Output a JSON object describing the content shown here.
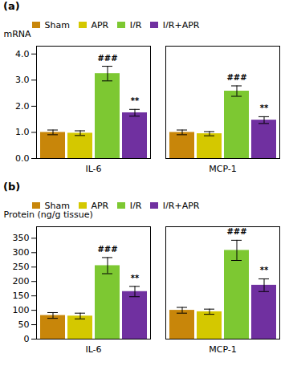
{
  "chart_data": [
    {
      "type": "bar",
      "title": "(a)",
      "categories": [
        "IL-6",
        "MCP-1"
      ],
      "series": [
        {
          "name": "Sham",
          "color": "#C8860A",
          "values": [
            1.0,
            1.0
          ],
          "errors": [
            0.09,
            0.09
          ]
        },
        {
          "name": "APR",
          "color": "#D4C800",
          "values": [
            0.97,
            0.95
          ],
          "errors": [
            0.09,
            0.08
          ]
        },
        {
          "name": "I/R",
          "color": "#7DC832",
          "values": [
            3.25,
            2.58
          ],
          "errors": [
            0.28,
            0.2
          ]
        },
        {
          "name": "I/R+APR",
          "color": "#7030A0",
          "values": [
            1.75,
            1.47
          ],
          "errors": [
            0.13,
            0.13
          ]
        }
      ],
      "annotations": [
        {
          "text": "###",
          "category": "IL-6",
          "series": "I/R"
        },
        {
          "text": "**",
          "category": "IL-6",
          "series": "I/R+APR"
        },
        {
          "text": "###",
          "category": "MCP-1",
          "series": "I/R"
        },
        {
          "text": "**",
          "category": "MCP-1",
          "series": "I/R+APR"
        }
      ],
      "ylabel": "mRNA",
      "ylim": [
        0,
        4.3
      ],
      "yticks": [
        0,
        1,
        2,
        3,
        4
      ],
      "grid": false,
      "legend": "upper left"
    },
    {
      "type": "bar",
      "title": "(b)",
      "categories": [
        "IL-6",
        "MCP-1"
      ],
      "series": [
        {
          "name": "Sham",
          "color": "#C8860A",
          "values": [
            82,
            100
          ],
          "errors": [
            10,
            10
          ]
        },
        {
          "name": "APR",
          "color": "#D4C800",
          "values": [
            80,
            95
          ],
          "errors": [
            10,
            9
          ]
        },
        {
          "name": "I/R",
          "color": "#7DC832",
          "values": [
            255,
            308
          ],
          "errors": [
            28,
            35
          ]
        },
        {
          "name": "I/R+APR",
          "color": "#7030A0",
          "values": [
            165,
            187
          ],
          "errors": [
            18,
            22
          ]
        }
      ],
      "annotations": [
        {
          "text": "###",
          "category": "IL-6",
          "series": "I/R"
        },
        {
          "text": "**",
          "category": "IL-6",
          "series": "I/R+APR"
        },
        {
          "text": "###",
          "category": "MCP-1",
          "series": "I/R"
        },
        {
          "text": "**",
          "category": "MCP-1",
          "series": "I/R+APR"
        }
      ],
      "ylabel": "Protein (ng/g tissue)",
      "ylim": [
        0,
        390
      ],
      "yticks": [
        0,
        50,
        100,
        150,
        200,
        250,
        300,
        350
      ],
      "grid": false,
      "legend": "upper left"
    }
  ]
}
